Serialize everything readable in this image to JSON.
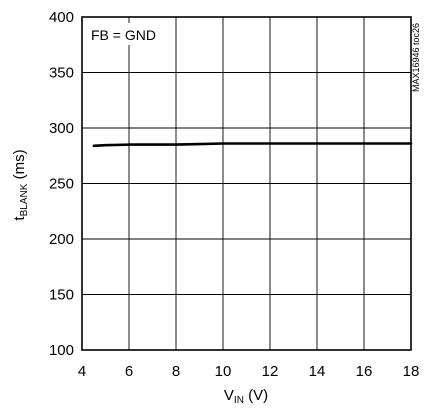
{
  "chart_data": {
    "type": "line",
    "xlabel": {
      "main": "V",
      "sub": "IN",
      "unit": " (V)"
    },
    "ylabel": {
      "main": "t",
      "sub": "BLANK",
      "unit": " (ms)"
    },
    "xlim": [
      4,
      18
    ],
    "ylim": [
      100,
      400
    ],
    "xticks": [
      4,
      6,
      8,
      10,
      12,
      14,
      16,
      18
    ],
    "yticks": [
      100,
      150,
      200,
      250,
      300,
      350,
      400
    ],
    "grid": true,
    "annotation": "FB = GND",
    "side_label": "MAX16946 toc26",
    "series": [
      {
        "x": [
          4.5,
          5,
          6,
          7,
          8,
          9,
          10,
          11,
          12,
          13,
          14,
          15,
          16,
          17,
          18
        ],
        "y": [
          284,
          284.5,
          285,
          285,
          285,
          285.5,
          286,
          286,
          286,
          286,
          286,
          286,
          286,
          286,
          286
        ]
      }
    ]
  }
}
